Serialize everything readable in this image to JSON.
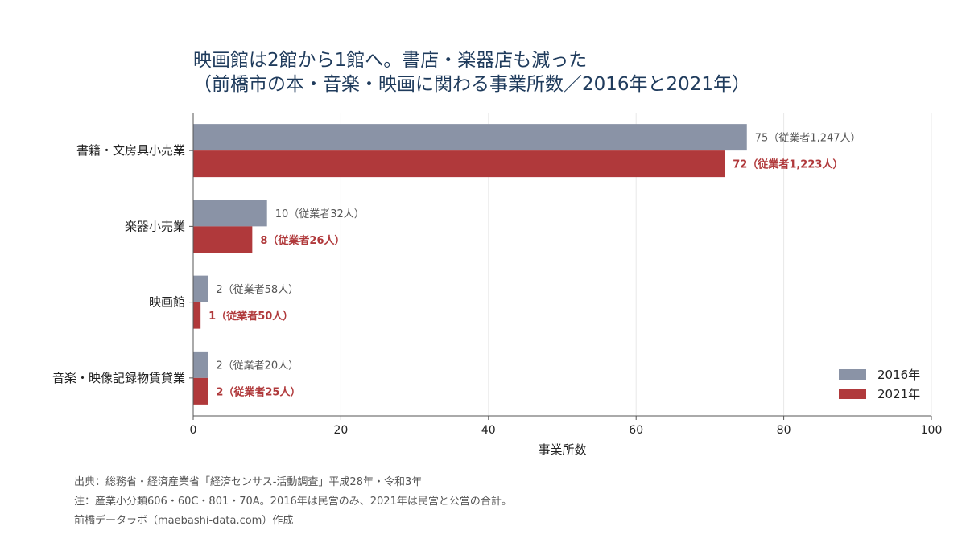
{
  "title": {
    "line1": "映画館は2館から1館へ。書店・楽器店も減った",
    "line2": "（前橋市の本・音楽・映画に関わる事業所数／2016年と2021年）"
  },
  "colors": {
    "series_2016": "#8a93a6",
    "series_2021": "#b0393b",
    "title": "#1f3b5c",
    "grid": "#e8e8e8",
    "axis": "#555555"
  },
  "chart_data": {
    "type": "bar",
    "orientation": "horizontal",
    "categories": [
      "書籍・文房具小売業",
      "楽器小売業",
      "映画館",
      "音楽・映像記録物賃貸業"
    ],
    "series": [
      {
        "name": "2016年",
        "values": [
          75,
          10,
          2,
          2
        ],
        "labels": [
          "75（従業者1,247人）",
          "10（従業者32人）",
          "2（従業者58人）",
          "2（従業者20人）"
        ]
      },
      {
        "name": "2021年",
        "values": [
          72,
          8,
          1,
          2
        ],
        "labels": [
          "72（従業者1,223人）",
          "8（従業者26人）",
          "1（従業者50人）",
          "2（従業者25人）"
        ]
      }
    ],
    "xlabel": "事業所数",
    "xlim": [
      0,
      100
    ],
    "xticks": [
      0,
      20,
      40,
      60,
      80,
      100
    ],
    "grid": true,
    "legend_position": "bottom-right"
  },
  "footnotes": {
    "source": "出典：総務省・経済産業省「経済センサス-活動調査」平成28年・令和3年",
    "note": "注：産業小分類606・60C・801・70A。2016年は民営のみ、2021年は民営と公営の合計。",
    "credit": "前橋データラボ（maebashi-data.com）作成"
  }
}
